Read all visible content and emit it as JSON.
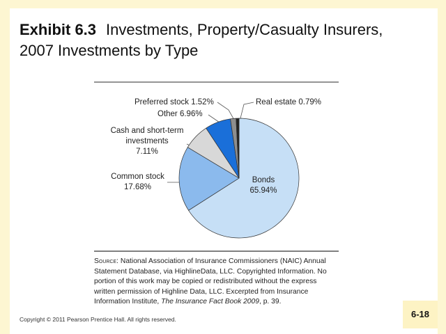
{
  "header": {
    "exhibit": "Exhibit 6.3",
    "title": "Investments, Property/Casualty Insurers, 2007 Investments by Type"
  },
  "chart_data": {
    "type": "pie",
    "categories": [
      "Bonds",
      "Common stock",
      "Cash and short-term investments",
      "Other",
      "Preferred stock",
      "Real estate"
    ],
    "values": [
      65.94,
      17.68,
      7.11,
      6.96,
      1.52,
      0.79
    ],
    "value_labels": [
      "65.94%",
      "17.68%",
      "7.11%",
      "6.96%",
      "1.52%",
      "0.79%"
    ],
    "colors": [
      "#c6dff6",
      "#8bbaed",
      "#d8d8d8",
      "#1a6fd9",
      "#8e8e8e",
      "#222222"
    ]
  },
  "source": {
    "label": "Source:",
    "text": "National Association of Insurance Commissioners (NAIC) Annual Statement Database, via HighlineData, LLC. Copyrighted Information. No portion of this work may be copied or redistributed without the express written permission of Highline Data, LLC. Excerpted from Insurance Information Institute,",
    "book": "The Insurance Fact Book 2009",
    "end": ", p. 39."
  },
  "footer": {
    "copyright": "Copyright © 2011 Pearson Prentice Hall. All rights reserved.",
    "page": "6-18"
  }
}
